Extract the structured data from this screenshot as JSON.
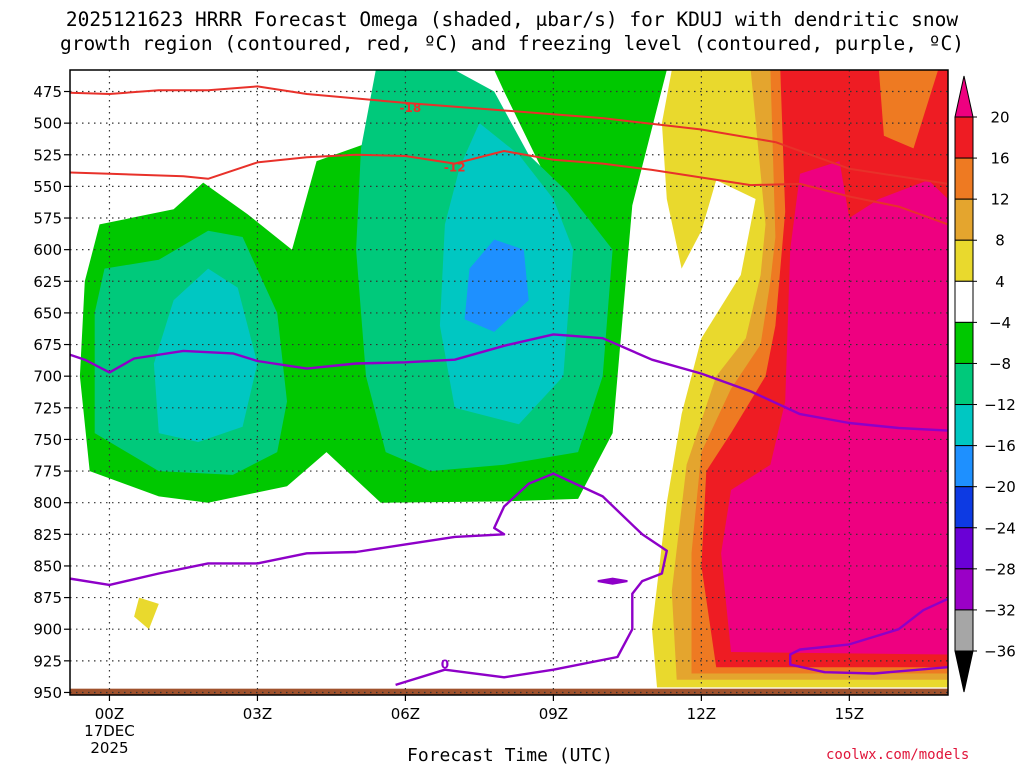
{
  "chart_data": {
    "type": "heatmap",
    "title_line1": "2025121623 HRRR Forecast Omega (shaded, μbar/s) for KDUJ with dendritic snow",
    "title_line2": "growth region (contoured, red, ºC) and freezing level (contoured, purple, ºC)",
    "xlabel": "Forecast Time (UTC)",
    "credit": "coolwx.com/models",
    "x_range": [
      -0.8,
      17.0
    ],
    "y_range": [
      952,
      458
    ],
    "y_ticks": [
      475,
      500,
      525,
      550,
      575,
      600,
      625,
      650,
      675,
      700,
      725,
      750,
      775,
      800,
      825,
      850,
      875,
      900,
      925,
      950
    ],
    "x_ticks": [
      {
        "hour": 0,
        "lines": [
          "00Z",
          "17DEC",
          "2025"
        ]
      },
      {
        "hour": 3,
        "lines": [
          "03Z"
        ]
      },
      {
        "hour": 6,
        "lines": [
          "06Z"
        ]
      },
      {
        "hour": 9,
        "lines": [
          "09Z"
        ]
      },
      {
        "hour": 12,
        "lines": [
          "12Z"
        ]
      },
      {
        "hour": 15,
        "lines": [
          "15Z"
        ]
      }
    ],
    "colorbar": {
      "labels": [
        "20",
        "16",
        "12",
        "8",
        "4",
        "−4",
        "−8",
        "−12",
        "−16",
        "−20",
        "−24",
        "−28",
        "−32",
        "−36"
      ],
      "colors": [
        "#ee1c23",
        "#ee7a22",
        "#e4a52e",
        "#e9d92d",
        "#ffffff",
        "#00c800",
        "#00c97b",
        "#00c7c2",
        "#1e90ff",
        "#0d3ae3",
        "#6a00d6",
        "#9a00c6",
        "#a6a6a6"
      ],
      "top_arrow_color": "#ee0080",
      "bottom_arrow_color": "#000000"
    },
    "omega_fields": [
      {
        "name": "omega < -4",
        "color": "#00c800",
        "points": [
          [
            1.9,
            547
          ],
          [
            2.8,
            572
          ],
          [
            3.7,
            600
          ],
          [
            4.2,
            530
          ],
          [
            6.0,
            505
          ],
          [
            9.0,
            555
          ],
          [
            8.0,
            475
          ],
          [
            7.8,
            458
          ],
          [
            11.3,
            458
          ],
          [
            10.6,
            565
          ],
          [
            10.2,
            745
          ],
          [
            9.5,
            797
          ],
          [
            8.0,
            799
          ],
          [
            5.5,
            800
          ],
          [
            4.4,
            760
          ],
          [
            3.6,
            787
          ],
          [
            2.0,
            800
          ],
          [
            1.0,
            795
          ],
          [
            -0.4,
            775
          ],
          [
            -0.6,
            700
          ],
          [
            -0.5,
            625
          ],
          [
            -0.2,
            580
          ],
          [
            1.3,
            568
          ]
        ]
      },
      {
        "name": "omega < -8",
        "color": "#00c97b",
        "points": [
          [
            2.0,
            585
          ],
          [
            2.7,
            590
          ],
          [
            3.4,
            650
          ],
          [
            3.6,
            720
          ],
          [
            3.4,
            760
          ],
          [
            2.5,
            778
          ],
          [
            1.0,
            775
          ],
          [
            -0.3,
            745
          ],
          [
            -0.3,
            650
          ],
          [
            -0.1,
            615
          ],
          [
            1.0,
            608
          ]
        ]
      },
      {
        "name": "omega < -8",
        "color": "#00c97b",
        "points": [
          [
            5.4,
            458
          ],
          [
            7.0,
            458
          ],
          [
            7.8,
            475
          ],
          [
            8.5,
            525
          ],
          [
            9.3,
            555
          ],
          [
            10.2,
            600
          ],
          [
            10.0,
            700
          ],
          [
            9.5,
            760
          ],
          [
            8.0,
            770
          ],
          [
            6.5,
            775
          ],
          [
            5.6,
            760
          ],
          [
            5.2,
            700
          ],
          [
            5.0,
            600
          ],
          [
            5.1,
            520
          ]
        ]
      },
      {
        "name": "omega < -12",
        "color": "#00c7c2",
        "points": [
          [
            2.0,
            615
          ],
          [
            2.6,
            630
          ],
          [
            3.0,
            690
          ],
          [
            2.7,
            740
          ],
          [
            1.8,
            752
          ],
          [
            1.0,
            745
          ],
          [
            0.9,
            690
          ],
          [
            1.3,
            640
          ]
        ]
      },
      {
        "name": "omega < -12",
        "color": "#00c7c2",
        "points": [
          [
            7.5,
            500
          ],
          [
            8.3,
            525
          ],
          [
            9.0,
            560
          ],
          [
            9.4,
            600
          ],
          [
            9.2,
            700
          ],
          [
            8.3,
            738
          ],
          [
            7.0,
            725
          ],
          [
            6.7,
            660
          ],
          [
            6.8,
            580
          ],
          [
            7.1,
            535
          ]
        ]
      },
      {
        "name": "omega < -16",
        "color": "#1e90ff",
        "points": [
          [
            7.8,
            592
          ],
          [
            8.4,
            600
          ],
          [
            8.5,
            640
          ],
          [
            7.8,
            665
          ],
          [
            7.2,
            655
          ],
          [
            7.3,
            615
          ]
        ]
      },
      {
        "name": "omega > 4",
        "color": "#e9d92d",
        "points": [
          [
            11.4,
            458
          ],
          [
            17.0,
            458
          ],
          [
            17.0,
            946
          ],
          [
            11.1,
            946
          ],
          [
            11.0,
            900
          ],
          [
            11.3,
            800
          ],
          [
            11.6,
            730
          ],
          [
            12.0,
            670
          ],
          [
            12.8,
            620
          ],
          [
            13.1,
            560
          ],
          [
            12.3,
            545
          ],
          [
            12.0,
            585
          ],
          [
            11.6,
            615
          ],
          [
            11.3,
            560
          ],
          [
            11.2,
            500
          ]
        ]
      },
      {
        "name": "omega > 4",
        "color": "#e9d92d",
        "points": [
          [
            0.6,
            875
          ],
          [
            1.0,
            880
          ],
          [
            0.8,
            900
          ],
          [
            0.5,
            890
          ]
        ]
      },
      {
        "name": "omega > 8",
        "color": "#e4a52e",
        "points": [
          [
            13.0,
            458
          ],
          [
            17.0,
            458
          ],
          [
            17.0,
            940
          ],
          [
            11.5,
            940
          ],
          [
            11.4,
            870
          ],
          [
            11.7,
            770
          ],
          [
            12.3,
            700
          ],
          [
            12.9,
            670
          ],
          [
            13.2,
            620
          ],
          [
            13.3,
            580
          ]
        ]
      },
      {
        "name": "omega > 12",
        "color": "#ee7a22",
        "points": [
          [
            13.4,
            458
          ],
          [
            17.0,
            458
          ],
          [
            17.0,
            935
          ],
          [
            11.8,
            935
          ],
          [
            11.8,
            840
          ],
          [
            12.0,
            760
          ],
          [
            12.6,
            710
          ],
          [
            13.2,
            675
          ],
          [
            13.4,
            625
          ],
          [
            13.5,
            590
          ]
        ]
      },
      {
        "name": "omega > 16",
        "color": "#ee1c23",
        "points": [
          [
            13.6,
            458
          ],
          [
            17.0,
            458
          ],
          [
            17.0,
            930
          ],
          [
            12.3,
            930
          ],
          [
            12.0,
            850
          ],
          [
            12.1,
            775
          ],
          [
            12.6,
            745
          ],
          [
            13.3,
            700
          ],
          [
            13.5,
            660
          ],
          [
            13.7,
            570
          ]
        ]
      },
      {
        "name": "omega > 20",
        "color": "#ee0080",
        "points": [
          [
            14.0,
            540
          ],
          [
            14.8,
            530
          ],
          [
            15.0,
            575
          ],
          [
            15.6,
            560
          ],
          [
            16.6,
            545
          ],
          [
            17.0,
            560
          ],
          [
            17.0,
            920
          ],
          [
            12.6,
            918
          ],
          [
            12.4,
            840
          ],
          [
            12.6,
            790
          ],
          [
            13.4,
            770
          ],
          [
            13.7,
            720
          ],
          [
            13.8,
            600
          ]
        ]
      },
      {
        "name": "omega > 12",
        "color": "#ee7a22",
        "points": [
          [
            15.6,
            458
          ],
          [
            16.8,
            458
          ],
          [
            16.3,
            520
          ],
          [
            15.7,
            510
          ]
        ]
      }
    ],
    "isotherm_lines": [
      {
        "label": "-18",
        "color": "#e8312a",
        "label_at": [
          6.1,
          488
        ],
        "points": [
          [
            -0.8,
            476
          ],
          [
            0.0,
            477
          ],
          [
            1.0,
            474
          ],
          [
            2.0,
            474
          ],
          [
            3.0,
            471
          ],
          [
            4.0,
            477
          ],
          [
            6.0,
            484
          ],
          [
            8.0,
            490
          ],
          [
            10.0,
            496
          ],
          [
            12.0,
            505
          ],
          [
            13.5,
            515
          ]
        ]
      },
      {
        "label": "-12",
        "color": "#e8312a",
        "label_at": [
          7.0,
          535
        ],
        "points": [
          [
            -0.8,
            539
          ],
          [
            0.0,
            540
          ],
          [
            1.5,
            542
          ],
          [
            2.0,
            544
          ],
          [
            3.0,
            531
          ],
          [
            4.0,
            527
          ],
          [
            5.0,
            525
          ],
          [
            6.0,
            526
          ],
          [
            7.0,
            532
          ],
          [
            8.0,
            522
          ],
          [
            9.0,
            529
          ],
          [
            10.0,
            532
          ],
          [
            11.0,
            537
          ],
          [
            12.0,
            543
          ],
          [
            13.0,
            549
          ],
          [
            14.0,
            548
          ],
          [
            15.0,
            558
          ],
          [
            16.0,
            566
          ],
          [
            17.0,
            580
          ]
        ]
      },
      {
        "label": "",
        "color": "#e8312a",
        "label_at": null,
        "points": [
          [
            13.5,
            515
          ],
          [
            15.0,
            536
          ],
          [
            16.0,
            542
          ],
          [
            17.0,
            548
          ]
        ]
      }
    ],
    "freezing_lines": [
      {
        "label": "",
        "color": "#8e00c8",
        "label_at": null,
        "points": [
          [
            -0.8,
            683
          ],
          [
            -0.5,
            687
          ],
          [
            0.0,
            697
          ],
          [
            0.5,
            686
          ],
          [
            1.5,
            680
          ],
          [
            2.5,
            682
          ],
          [
            3.0,
            688
          ],
          [
            4.0,
            694
          ],
          [
            5.0,
            690
          ],
          [
            6.0,
            689
          ],
          [
            7.0,
            687
          ],
          [
            8.0,
            676
          ],
          [
            9.0,
            667
          ],
          [
            10.0,
            670
          ],
          [
            11.0,
            687
          ],
          [
            12.0,
            698
          ],
          [
            13.0,
            712
          ],
          [
            14.0,
            730
          ],
          [
            15.0,
            737
          ],
          [
            16.0,
            741
          ],
          [
            17.0,
            743
          ]
        ]
      },
      {
        "label": "0",
        "color": "#8e00c8",
        "label_at": [
          6.8,
          928
        ],
        "points": [
          [
            -0.8,
            860
          ],
          [
            0.0,
            865
          ],
          [
            1.0,
            856
          ],
          [
            2.0,
            848
          ],
          [
            3.0,
            848
          ],
          [
            4.0,
            840
          ],
          [
            5.0,
            839
          ],
          [
            6.0,
            833
          ],
          [
            7.0,
            827
          ],
          [
            8.0,
            825
          ],
          [
            7.8,
            820
          ],
          [
            8.0,
            803
          ],
          [
            8.5,
            785
          ],
          [
            9.0,
            777
          ],
          [
            10.0,
            795
          ],
          [
            10.8,
            825
          ],
          [
            11.3,
            838
          ],
          [
            11.2,
            856
          ],
          [
            10.8,
            862
          ],
          [
            10.6,
            872
          ],
          [
            10.6,
            900
          ],
          [
            10.3,
            922
          ],
          [
            9.0,
            932
          ],
          [
            8.0,
            938
          ],
          [
            6.8,
            932
          ],
          [
            5.8,
            944
          ]
        ]
      },
      {
        "label": "",
        "color": "#8e00c8",
        "label_at": null,
        "points": [
          [
            17.0,
            876
          ],
          [
            16.5,
            885
          ],
          [
            16.0,
            900
          ],
          [
            15.0,
            912
          ],
          [
            14.0,
            916
          ],
          [
            13.8,
            920
          ],
          [
            13.8,
            928
          ],
          [
            14.5,
            934
          ],
          [
            15.5,
            935
          ],
          [
            17.0,
            930
          ]
        ]
      }
    ],
    "isotherm_small_loop": [
      [
        9.9,
        862
      ],
      [
        10.2,
        860
      ],
      [
        10.5,
        862
      ],
      [
        10.2,
        864
      ]
    ],
    "terrain": {
      "color": "#a0522d",
      "top_hpa": 947
    }
  }
}
